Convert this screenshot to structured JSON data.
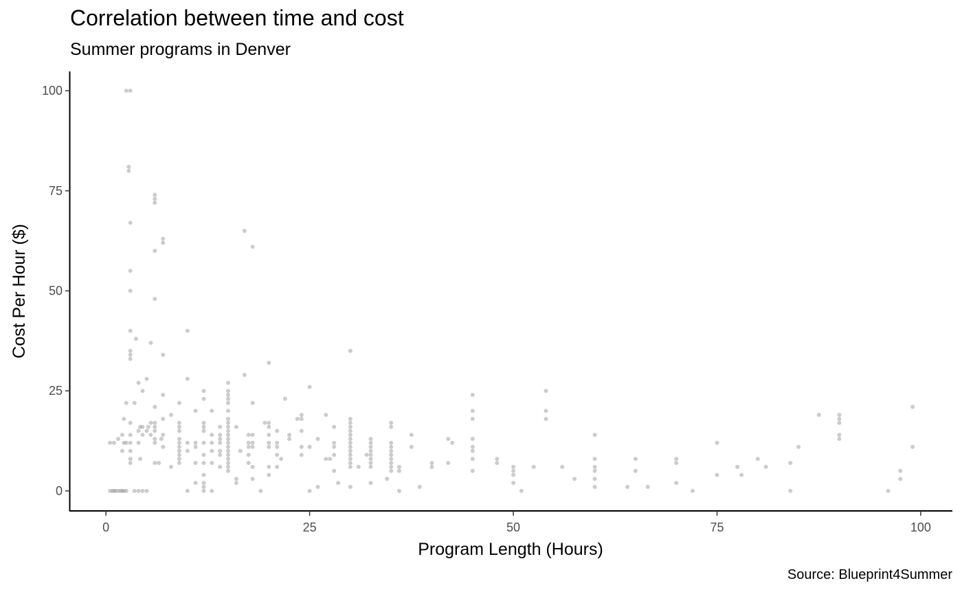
{
  "chart_data": {
    "type": "scatter",
    "title": "Correlation between time and cost",
    "subtitle": "Summer programs in Denver",
    "caption": "Source: Blueprint4Summer",
    "xlabel": "Program Length (Hours)",
    "ylabel": "Cost Per Hour ($)",
    "xlim": [
      -4.4,
      103.8
    ],
    "ylim": [
      -5,
      105
    ],
    "xticks": [
      0,
      25,
      50,
      75,
      100
    ],
    "yticks": [
      0,
      25,
      50,
      75,
      100
    ],
    "xtick_labels": [
      "0",
      "25",
      "50",
      "75",
      "100"
    ],
    "ytick_labels": [
      "0",
      "25",
      "50",
      "75",
      "100"
    ],
    "grid": false,
    "point_color": "#999999",
    "series": [
      {
        "points": [
          [
            0.5,
            0
          ],
          [
            0.8,
            0
          ],
          [
            1,
            0
          ],
          [
            1.2,
            0
          ],
          [
            1.5,
            0
          ],
          [
            1.8,
            0
          ],
          [
            2,
            0
          ],
          [
            2.2,
            0
          ],
          [
            2.5,
            0
          ],
          [
            3.5,
            0
          ],
          [
            4,
            0
          ],
          [
            4.5,
            0
          ],
          [
            5,
            0
          ],
          [
            10,
            0
          ],
          [
            12,
            0
          ],
          [
            13,
            0
          ],
          [
            19,
            0
          ],
          [
            25,
            0
          ],
          [
            26,
            1
          ],
          [
            0.5,
            12
          ],
          [
            1,
            12
          ],
          [
            1.5,
            13
          ],
          [
            2,
            10
          ],
          [
            2.2,
            12
          ],
          [
            2,
            14
          ],
          [
            2.5,
            12
          ],
          [
            2.2,
            18
          ],
          [
            2.5,
            22
          ],
          [
            3,
            7
          ],
          [
            3,
            8
          ],
          [
            3,
            10
          ],
          [
            3,
            12
          ],
          [
            3,
            14
          ],
          [
            3,
            17
          ],
          [
            3.5,
            22
          ],
          [
            3.7,
            38
          ],
          [
            4,
            27
          ],
          [
            4,
            12
          ],
          [
            4,
            15
          ],
          [
            4.2,
            16
          ],
          [
            4.5,
            16
          ],
          [
            4.2,
            8
          ],
          [
            4.5,
            14
          ],
          [
            4.5,
            25
          ],
          [
            5,
            28
          ],
          [
            5,
            15
          ],
          [
            5.2,
            16
          ],
          [
            5.5,
            17
          ],
          [
            5.5,
            14
          ],
          [
            5.5,
            37
          ],
          [
            6,
            7
          ],
          [
            6,
            12
          ],
          [
            6,
            13
          ],
          [
            6,
            16
          ],
          [
            6,
            17
          ],
          [
            6,
            21
          ],
          [
            6,
            15
          ],
          [
            6.5,
            7
          ],
          [
            6.8,
            13
          ],
          [
            7,
            11
          ],
          [
            7,
            14
          ],
          [
            7,
            18
          ],
          [
            7,
            24
          ],
          [
            7,
            34
          ],
          [
            8,
            6
          ],
          [
            8,
            19
          ],
          [
            9,
            10
          ],
          [
            9,
            12
          ],
          [
            9,
            13
          ],
          [
            9,
            15
          ],
          [
            9,
            16
          ],
          [
            9,
            17
          ],
          [
            9,
            22
          ],
          [
            9,
            8
          ],
          [
            9,
            9
          ],
          [
            9,
            11
          ],
          [
            9,
            7
          ],
          [
            10,
            10
          ],
          [
            10,
            12
          ],
          [
            10,
            28
          ],
          [
            10,
            40
          ],
          [
            11,
            12
          ],
          [
            11,
            11
          ],
          [
            11,
            20
          ],
          [
            11,
            7
          ],
          [
            11,
            2
          ],
          [
            12,
            1
          ],
          [
            12,
            2
          ],
          [
            12,
            4
          ],
          [
            12,
            7
          ],
          [
            12,
            9
          ],
          [
            12,
            12
          ],
          [
            12,
            15
          ],
          [
            12,
            16
          ],
          [
            12,
            17
          ],
          [
            12,
            23
          ],
          [
            12,
            25
          ],
          [
            13,
            10
          ],
          [
            13,
            12
          ],
          [
            13,
            14
          ],
          [
            13,
            20
          ],
          [
            13,
            7
          ],
          [
            14,
            6
          ],
          [
            14,
            9
          ],
          [
            14,
            12
          ],
          [
            14,
            13
          ],
          [
            14,
            14
          ],
          [
            14,
            16
          ],
          [
            14,
            10
          ],
          [
            15,
            5
          ],
          [
            15,
            6
          ],
          [
            15,
            7
          ],
          [
            15,
            8
          ],
          [
            15,
            9
          ],
          [
            15,
            10
          ],
          [
            15,
            11
          ],
          [
            15,
            12
          ],
          [
            15,
            13
          ],
          [
            15,
            14
          ],
          [
            15,
            15
          ],
          [
            15,
            16
          ],
          [
            15,
            17
          ],
          [
            15,
            18
          ],
          [
            15,
            20
          ],
          [
            15,
            22
          ],
          [
            15,
            23
          ],
          [
            15,
            24
          ],
          [
            15,
            25
          ],
          [
            15,
            27
          ],
          [
            16,
            2
          ],
          [
            16,
            3
          ],
          [
            16,
            16
          ],
          [
            16.5,
            10
          ],
          [
            17,
            29
          ],
          [
            17,
            65
          ],
          [
            17.5,
            9
          ],
          [
            17.5,
            11
          ],
          [
            17.5,
            12
          ],
          [
            17.5,
            14
          ],
          [
            17.5,
            7
          ],
          [
            18,
            3
          ],
          [
            18,
            6
          ],
          [
            18,
            14
          ],
          [
            18,
            11
          ],
          [
            18,
            12
          ],
          [
            18,
            22
          ],
          [
            18,
            61
          ],
          [
            19.5,
            17
          ],
          [
            20,
            4
          ],
          [
            20,
            6
          ],
          [
            20,
            11
          ],
          [
            20,
            12
          ],
          [
            20,
            14
          ],
          [
            20,
            16
          ],
          [
            20,
            17
          ],
          [
            20,
            32
          ],
          [
            21,
            9
          ],
          [
            21,
            11
          ],
          [
            21,
            12
          ],
          [
            21,
            6
          ],
          [
            21,
            15
          ],
          [
            21.5,
            8
          ],
          [
            22,
            23
          ],
          [
            22.5,
            13
          ],
          [
            22.5,
            14
          ],
          [
            23.5,
            18
          ],
          [
            24,
            9
          ],
          [
            24,
            11
          ],
          [
            24,
            15
          ],
          [
            24,
            18
          ],
          [
            24,
            19
          ],
          [
            25,
            11
          ],
          [
            25,
            26
          ],
          [
            26,
            13
          ],
          [
            27,
            8
          ],
          [
            27,
            19
          ],
          [
            27.5,
            8
          ],
          [
            28,
            5
          ],
          [
            28,
            9
          ],
          [
            28,
            11
          ],
          [
            28,
            12
          ],
          [
            28,
            16
          ],
          [
            28.5,
            2
          ],
          [
            30,
            1
          ],
          [
            30,
            6
          ],
          [
            30,
            7
          ],
          [
            30,
            8
          ],
          [
            30,
            9
          ],
          [
            30,
            10
          ],
          [
            30,
            11
          ],
          [
            30,
            12
          ],
          [
            30,
            13
          ],
          [
            30,
            14
          ],
          [
            30,
            15
          ],
          [
            30,
            16
          ],
          [
            30,
            17
          ],
          [
            30,
            18
          ],
          [
            30,
            35
          ],
          [
            31,
            6
          ],
          [
            32,
            9
          ],
          [
            32.5,
            2
          ],
          [
            32.5,
            6
          ],
          [
            32.5,
            7
          ],
          [
            32.5,
            8
          ],
          [
            32.5,
            9
          ],
          [
            32.5,
            10
          ],
          [
            32.5,
            11
          ],
          [
            32.5,
            12
          ],
          [
            32.5,
            13
          ],
          [
            34.5,
            3
          ],
          [
            35,
            5
          ],
          [
            35,
            6
          ],
          [
            35,
            7
          ],
          [
            35,
            8
          ],
          [
            35,
            9
          ],
          [
            35,
            10
          ],
          [
            35,
            11
          ],
          [
            35,
            12
          ],
          [
            35,
            16
          ],
          [
            35,
            17
          ],
          [
            36,
            0
          ],
          [
            36,
            5
          ],
          [
            36,
            6
          ],
          [
            37.5,
            11
          ],
          [
            37.5,
            14
          ],
          [
            38.5,
            1
          ],
          [
            40,
            6
          ],
          [
            40,
            7
          ],
          [
            42,
            7
          ],
          [
            42,
            13
          ],
          [
            42.5,
            12
          ],
          [
            45,
            5
          ],
          [
            45,
            8
          ],
          [
            45,
            10
          ],
          [
            45,
            11
          ],
          [
            45,
            13
          ],
          [
            45,
            18
          ],
          [
            45,
            20
          ],
          [
            45,
            24
          ],
          [
            48,
            7
          ],
          [
            48,
            8
          ],
          [
            50,
            2
          ],
          [
            50,
            4
          ],
          [
            50,
            5
          ],
          [
            50,
            6
          ],
          [
            51,
            0
          ],
          [
            52.5,
            6
          ],
          [
            54,
            18
          ],
          [
            54,
            20
          ],
          [
            54,
            25
          ],
          [
            56,
            6
          ],
          [
            57.5,
            3
          ],
          [
            60,
            1
          ],
          [
            60,
            3
          ],
          [
            60,
            5
          ],
          [
            60,
            6
          ],
          [
            60,
            8
          ],
          [
            60,
            14
          ],
          [
            64,
            1
          ],
          [
            65,
            5
          ],
          [
            65,
            8
          ],
          [
            66.5,
            1
          ],
          [
            70,
            2
          ],
          [
            70,
            7
          ],
          [
            70,
            8
          ],
          [
            72,
            0
          ],
          [
            75,
            4
          ],
          [
            75,
            12
          ],
          [
            77.5,
            6
          ],
          [
            78,
            4
          ],
          [
            80,
            8
          ],
          [
            81,
            6
          ],
          [
            84,
            0
          ],
          [
            84,
            7
          ],
          [
            85,
            11
          ],
          [
            87.5,
            19
          ],
          [
            90,
            13
          ],
          [
            90,
            14
          ],
          [
            90,
            17
          ],
          [
            90,
            18
          ],
          [
            90,
            19
          ],
          [
            96,
            0
          ],
          [
            97.5,
            3
          ],
          [
            97.5,
            5
          ],
          [
            99,
            11
          ],
          [
            99,
            21
          ],
          [
            2.5,
            100
          ],
          [
            3,
            100
          ],
          [
            2.8,
            80
          ],
          [
            2.8,
            81
          ],
          [
            3,
            67
          ],
          [
            3,
            55
          ],
          [
            3,
            50
          ],
          [
            3,
            40
          ],
          [
            3,
            33
          ],
          [
            3,
            34
          ],
          [
            3,
            35
          ],
          [
            6,
            60
          ],
          [
            6,
            48
          ],
          [
            6,
            72
          ],
          [
            6,
            73
          ],
          [
            6,
            74
          ],
          [
            7,
            62
          ],
          [
            7,
            63
          ]
        ]
      }
    ]
  }
}
